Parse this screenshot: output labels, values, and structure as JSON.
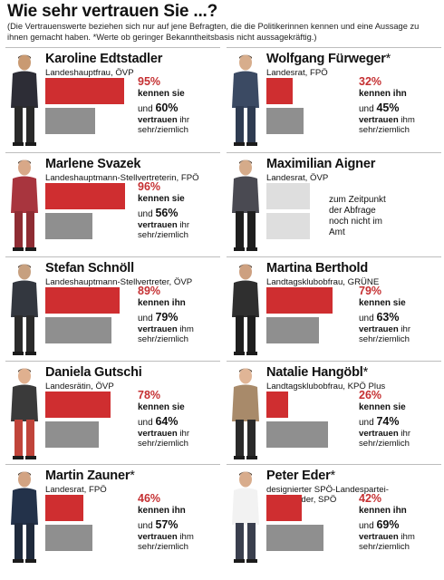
{
  "title": "Wie sehr vertrauen Sie ...?",
  "note": "(Die Vertrauenswerte beziehen sich nur auf jene Befragten, die die Politikerinnen kennen und eine Aussage zu ihnen gemacht haben. *Werte ob geringer Bekanntheitsbasis nicht aussagekräftig.)",
  "labels": {
    "vertrauen": "vertrauen",
    "sehr_ziemlich": "sehr/ziemlich"
  },
  "colors": {
    "known": "#cf2e30",
    "trust": "#8f8f8f",
    "no_data": "#dedede"
  },
  "chart_data": {
    "type": "bar",
    "title": "Wie sehr vertrauen Sie ...?",
    "xlim": [
      0,
      100
    ],
    "series": [
      {
        "name": "kennen",
        "color": "#cf2e30"
      },
      {
        "name": "vertrauen sehr/ziemlich",
        "color": "#8f8f8f"
      }
    ],
    "politicians": [
      {
        "name": "Karoline Edtstadler",
        "star": "",
        "role": "Landeshauptfrau, ÖVP",
        "known": 95,
        "trust": 60,
        "known_text": "kennen sie",
        "trust_suffix": "ihr"
      },
      {
        "name": "Marlene Svazek",
        "star": "",
        "role": "Landeshauptmann-Stellvertreterin, FPÖ",
        "known": 96,
        "trust": 56,
        "known_text": "kennen sie",
        "trust_suffix": "ihr"
      },
      {
        "name": "Stefan Schnöll",
        "star": "",
        "role": "Landeshauptmann-Stellvertreter, ÖVP",
        "known": 89,
        "trust": 79,
        "known_text": "kennen ihn",
        "trust_suffix": "ihm"
      },
      {
        "name": "Daniela Gutschi",
        "star": "",
        "role": "Landesrätin, ÖVP",
        "known": 78,
        "trust": 64,
        "known_text": "kennen sie",
        "trust_suffix": "ihr"
      },
      {
        "name": "Martin Zauner",
        "star": "*",
        "role": "Landesrat, FPÖ",
        "known": 46,
        "trust": 57,
        "known_text": "kennen ihn",
        "trust_suffix": "ihm"
      },
      {
        "name": "Wolfgang Fürweger",
        "star": "*",
        "role": "Landesrat, FPÖ",
        "known": 32,
        "trust": 45,
        "known_text": "kennen ihn",
        "trust_suffix": "ihm"
      },
      {
        "name": "Maximilian Aigner",
        "star": "",
        "role": "Landesrat, ÖVP",
        "known": null,
        "trust": null,
        "no_data_text": "zum Zeitpunkt der Abfrage noch nicht im Amt"
      },
      {
        "name": "Martina Berthold",
        "star": "",
        "role": "Landtagsklubobfrau, GRÜNE",
        "known": 79,
        "trust": 63,
        "known_text": "kennen sie",
        "trust_suffix": "ihr"
      },
      {
        "name": "Natalie Hangöbl",
        "star": "*",
        "role": "Landtagsklubobfrau, KPÖ Plus",
        "known": 26,
        "trust": 74,
        "known_text": "kennen sie",
        "trust_suffix": "ihr"
      },
      {
        "name": "Peter Eder",
        "star": "*",
        "role": "designierter SPÖ-Landespartei-\nvorsitzender, SPÖ",
        "known": 42,
        "trust": 69,
        "known_text": "kennen ihn",
        "trust_suffix": "ihm"
      }
    ]
  }
}
